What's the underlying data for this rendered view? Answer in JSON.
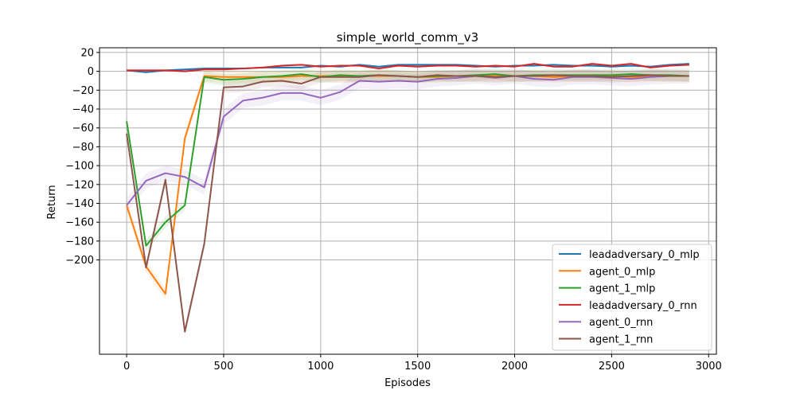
{
  "chart_data": {
    "type": "line",
    "title": "simple_world_comm_v3",
    "xlabel": "Episodes",
    "ylabel": "Return",
    "xlim": [
      -140,
      3040
    ],
    "ylim": [
      -300,
      25
    ],
    "xticks": [
      0,
      500,
      1000,
      1500,
      2000,
      2500,
      3000
    ],
    "yticks": [
      20,
      0,
      -20,
      -40,
      -60,
      -80,
      -100,
      -120,
      -140,
      -160,
      -180,
      -200
    ],
    "grid": true,
    "legend_position": "lower-right",
    "x": [
      0,
      100,
      200,
      300,
      400,
      500,
      600,
      700,
      800,
      900,
      1000,
      1100,
      1200,
      1300,
      1400,
      1500,
      1600,
      1700,
      1800,
      1900,
      2000,
      2100,
      2200,
      2300,
      2400,
      2500,
      2600,
      2700,
      2800,
      2900
    ],
    "series": [
      {
        "name": "leadadversary_0_mlp",
        "color": "#1f77b4",
        "values": [
          1,
          -1,
          1,
          2,
          3,
          3,
          3,
          4,
          4,
          4,
          6,
          5,
          7,
          5,
          7,
          7,
          7,
          7,
          6,
          5,
          6,
          6,
          7,
          6,
          6,
          5,
          6,
          5,
          7,
          8
        ],
        "band": 1
      },
      {
        "name": "agent_0_mlp",
        "color": "#ff7f0e",
        "values": [
          -142,
          -207,
          -236,
          -71,
          -5,
          -6,
          -6,
          -6,
          -6,
          -5,
          -5,
          -5,
          -5,
          -5,
          -5,
          -6,
          -6,
          -5,
          -5,
          -5,
          -5,
          -5,
          -6,
          -5,
          -5,
          -5,
          -6,
          -5,
          -5,
          -5
        ],
        "band": 6
      },
      {
        "name": "agent_1_mlp",
        "color": "#2ca02c",
        "values": [
          -53,
          -185,
          -160,
          -142,
          -6,
          -9,
          -8,
          -6,
          -5,
          -3,
          -6,
          -4,
          -5,
          -4,
          -5,
          -6,
          -5,
          -5,
          -4,
          -3,
          -5,
          -4,
          -4,
          -4,
          -4,
          -4,
          -3,
          -4,
          -4,
          -5
        ],
        "band": 6
      },
      {
        "name": "leadadversary_0_rnn",
        "color": "#d62728",
        "values": [
          1,
          1,
          1,
          0,
          2,
          2,
          3,
          4,
          6,
          7,
          5,
          6,
          6,
          3,
          6,
          5,
          6,
          6,
          5,
          6,
          5,
          8,
          5,
          5,
          8,
          6,
          8,
          4,
          6,
          7
        ],
        "band": 1
      },
      {
        "name": "agent_0_rnn",
        "color": "#9467bd",
        "values": [
          -142,
          -116,
          -108,
          -112,
          -123,
          -48,
          -31,
          -28,
          -23,
          -23,
          -28,
          -22,
          -10,
          -11,
          -10,
          -11,
          -8,
          -7,
          -5,
          -7,
          -5,
          -8,
          -9,
          -6,
          -6,
          -7,
          -8,
          -6,
          -5,
          -5
        ],
        "band": 8
      },
      {
        "name": "agent_1_rnn",
        "color": "#8c564b",
        "values": [
          -66,
          -208,
          -115,
          -276,
          -183,
          -17,
          -16,
          -11,
          -10,
          -13,
          -6,
          -6,
          -6,
          -4,
          -5,
          -6,
          -4,
          -5,
          -5,
          -6,
          -5,
          -5,
          -4,
          -5,
          -5,
          -6,
          -5,
          -4,
          -5,
          -5
        ],
        "band": 6
      }
    ]
  }
}
